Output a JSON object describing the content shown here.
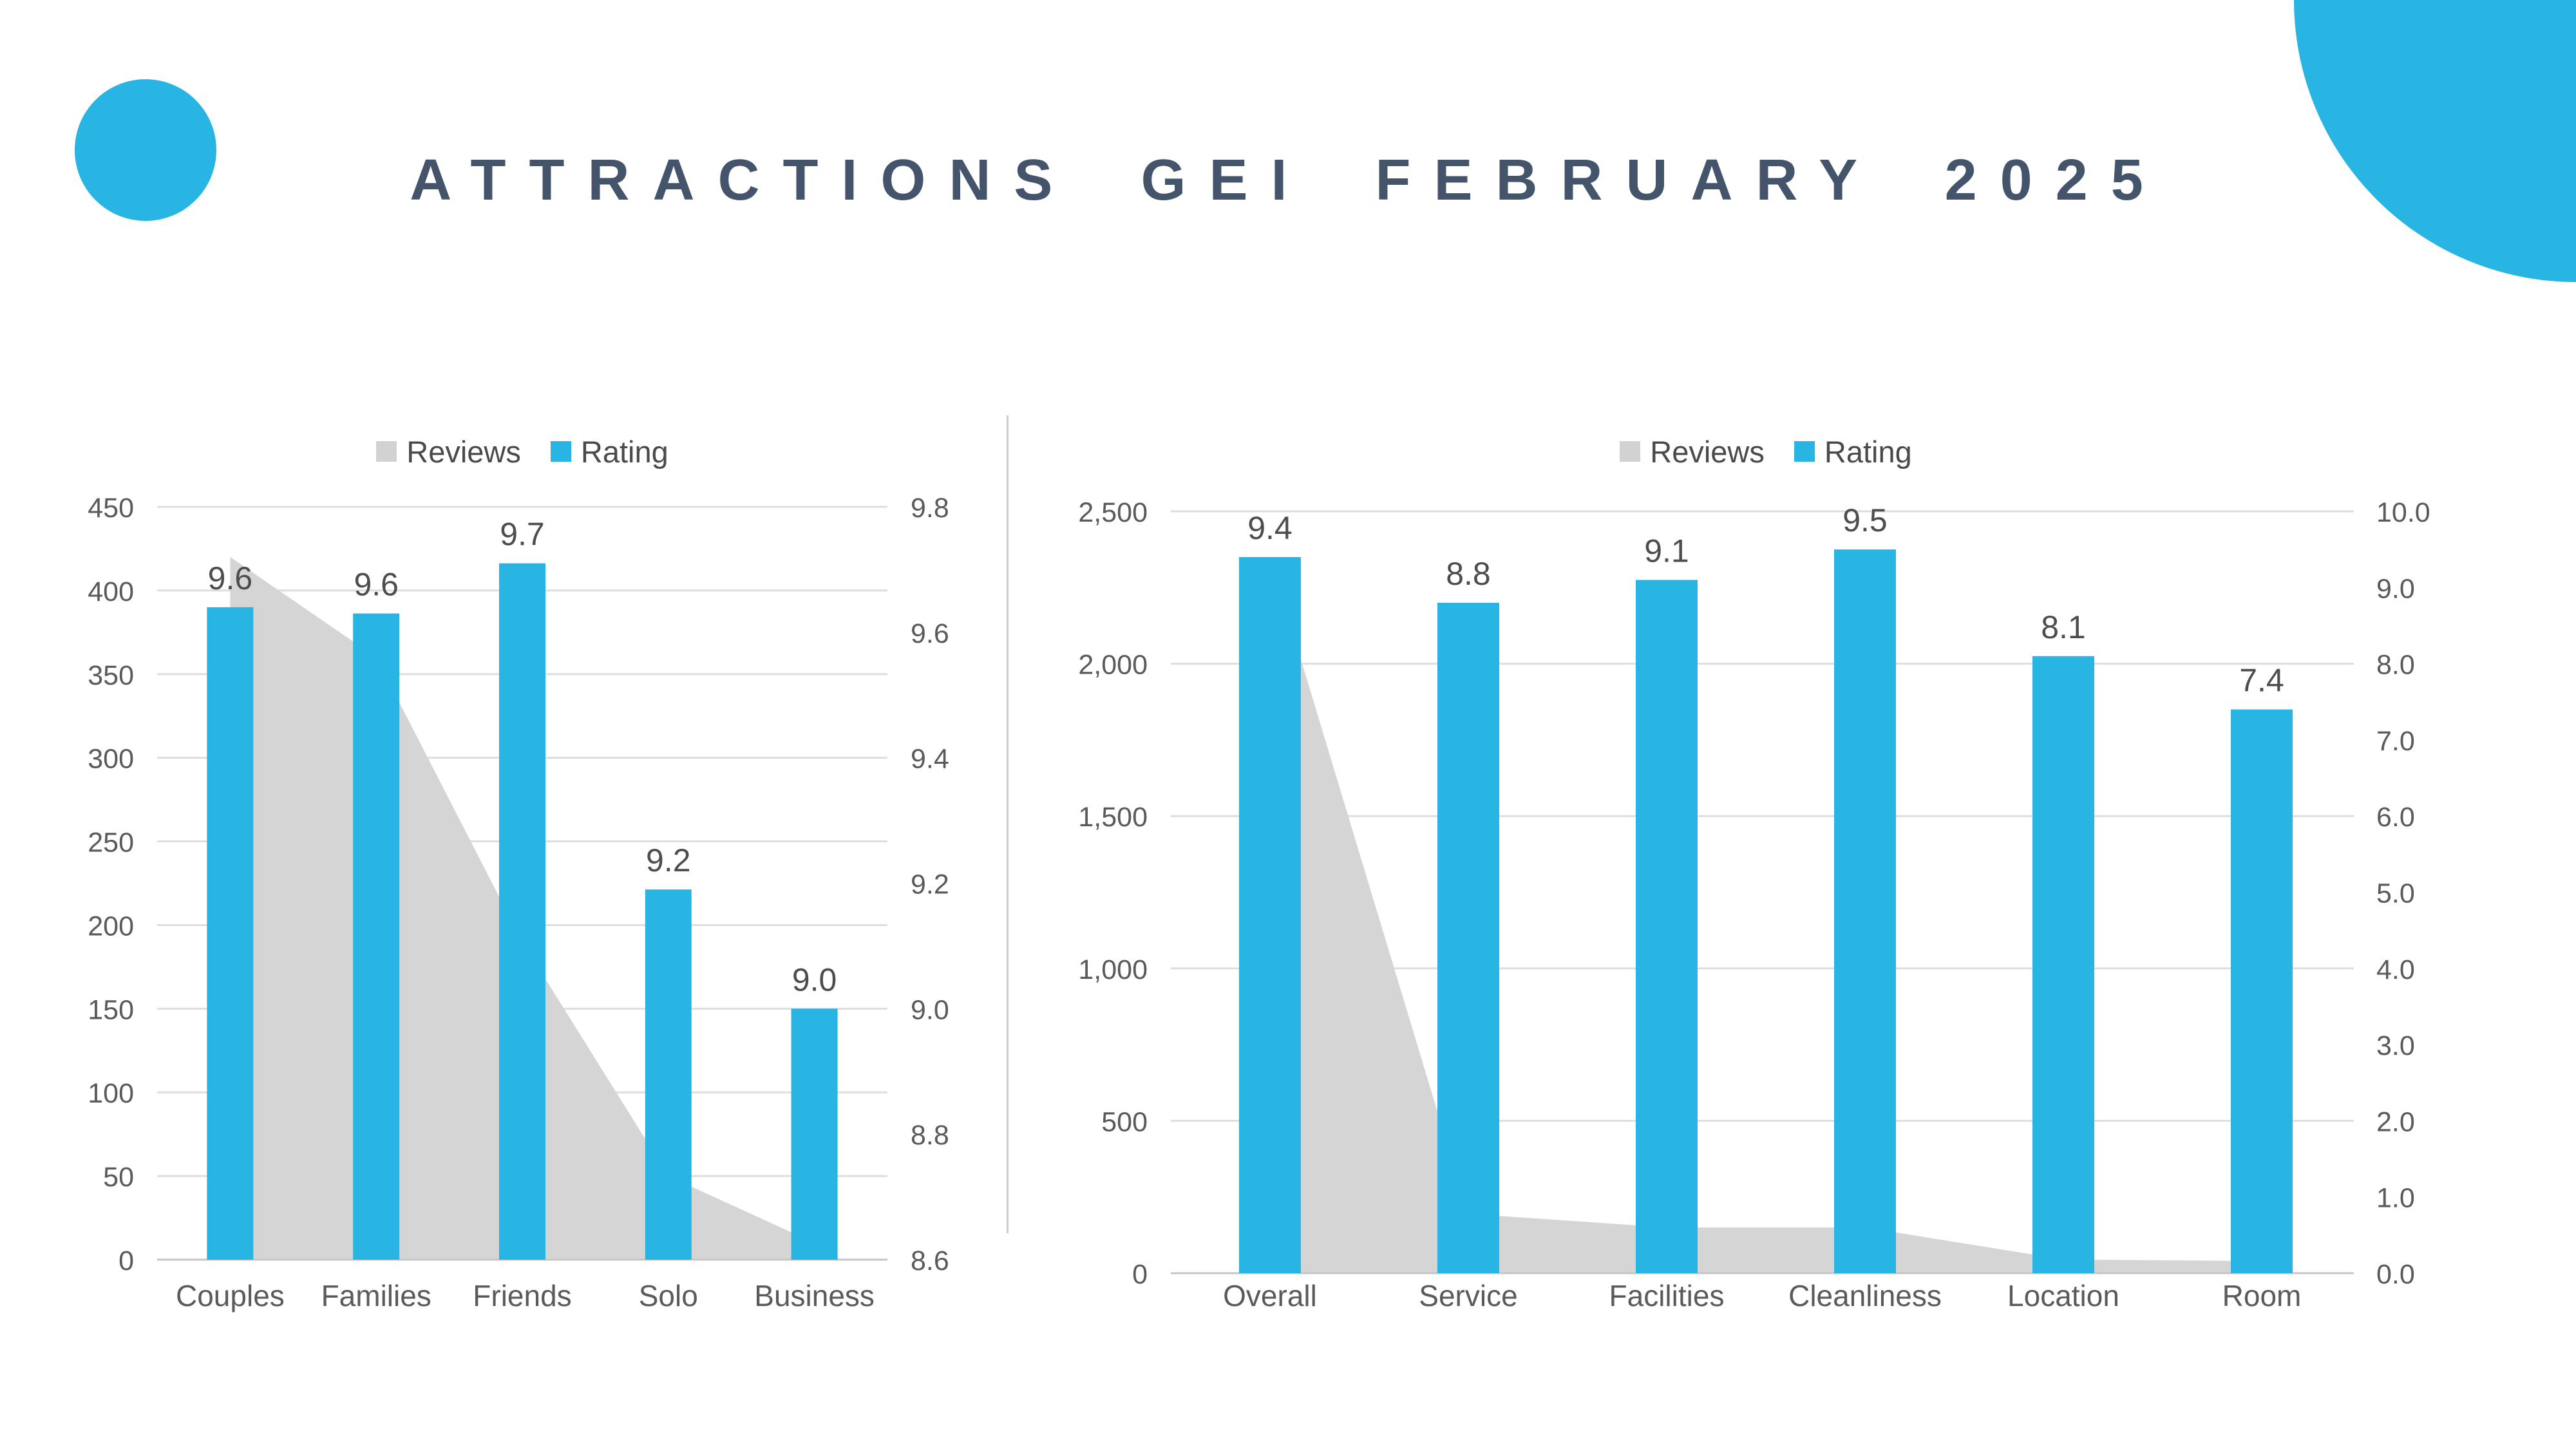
{
  "title": "ATTRACTIONS GEI FEBRUARY 2025",
  "colors": {
    "background": "#FFFFFF",
    "accent": "#29B5E3",
    "reviews_gray": "#D5D5D5",
    "legend_reviews_swatch": "#D2D2D2",
    "gridline": "#DEDEDE",
    "baseline": "#C6C6C6",
    "axis_text": "#5A5A5A",
    "data_label_text": "#4D4D4D",
    "legend_text": "#4A4A4A",
    "title_text": "#44546A",
    "divider": "#CCCCCC"
  },
  "chart_data": [
    {
      "type": "bar+area combo",
      "name": "GEI by traveler type",
      "categories": [
        "Couples",
        "Families",
        "Friends",
        "Solo",
        "Business"
      ],
      "series": [
        {
          "name": "Reviews",
          "type": "area",
          "axis": "left",
          "color_key": "reviews_gray",
          "values": [
            420,
            360,
            190,
            50,
            10
          ]
        },
        {
          "name": "Rating",
          "type": "bar",
          "axis": "right",
          "color_key": "accent",
          "values": [
            9.64,
            9.63,
            9.71,
            9.19,
            9.0
          ],
          "data_labels": [
            "9.6",
            "9.6",
            "9.7",
            "9.2",
            "9.0"
          ]
        }
      ],
      "left_axis": {
        "min": 0,
        "max": 450,
        "step": 50,
        "tick_labels": [
          "0",
          "50",
          "100",
          "150",
          "200",
          "250",
          "300",
          "350",
          "400",
          "450"
        ]
      },
      "right_axis": {
        "min": 8.6,
        "max": 9.8,
        "step": 0.2,
        "tick_labels": [
          "8.6",
          "8.8",
          "9.0",
          "9.2",
          "9.4",
          "9.6",
          "9.8"
        ]
      },
      "legend": {
        "position": "top",
        "entries": [
          "Reviews",
          "Rating"
        ]
      },
      "grid": true
    },
    {
      "type": "bar+area combo",
      "name": "GEI by review category",
      "categories": [
        "Overall",
        "Service",
        "Facilities",
        "Cleanliness",
        "Location",
        "Room"
      ],
      "series": [
        {
          "name": "Reviews",
          "type": "area",
          "axis": "left",
          "color_key": "reviews_gray",
          "values": [
            2350,
            195,
            150,
            150,
            45,
            40
          ]
        },
        {
          "name": "Rating",
          "type": "bar",
          "axis": "right",
          "color_key": "accent",
          "values": [
            9.4,
            8.8,
            9.1,
            9.5,
            8.1,
            7.4
          ],
          "data_labels": [
            "9.4",
            "8.8",
            "9.1",
            "9.5",
            "8.1",
            "7.4"
          ]
        }
      ],
      "left_axis": {
        "min": 0,
        "max": 2500,
        "step": 500,
        "tick_labels": [
          "0",
          "500",
          "1,000",
          "1,500",
          "2,000",
          "2,500"
        ]
      },
      "right_axis": {
        "min": 0,
        "max": 10,
        "step": 1,
        "tick_labels": [
          "0.0",
          "1.0",
          "2.0",
          "3.0",
          "4.0",
          "5.0",
          "6.0",
          "7.0",
          "8.0",
          "9.0",
          "10.0"
        ]
      },
      "legend": {
        "position": "top",
        "entries": [
          "Reviews",
          "Rating"
        ]
      },
      "grid": true
    }
  ]
}
